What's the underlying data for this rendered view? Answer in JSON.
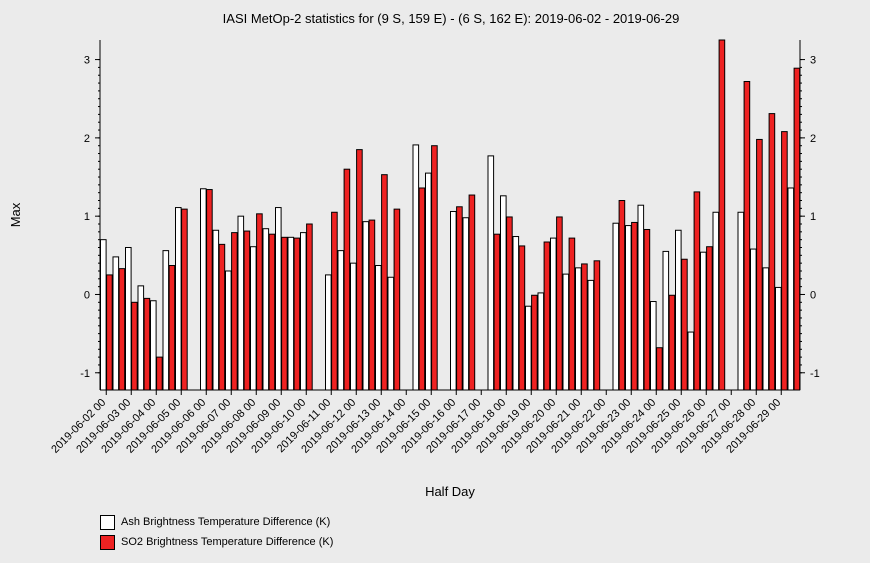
{
  "chart_data": {
    "type": "bar",
    "title": "IASI MetOp-2 statistics for (9 S, 159 E) - (6 S, 162 E): 2019-06-02 - 2019-06-29",
    "xlabel": "Half Day",
    "ylabel": "Max",
    "ylim": [
      -1.22,
      3.25
    ],
    "yticks": [
      -1,
      0,
      1,
      2,
      3
    ],
    "grid": false,
    "legend_position": "bottom-left",
    "categories": [
      "2019-06-02 00",
      "2019-06-02 12",
      "2019-06-03 00",
      "2019-06-03 12",
      "2019-06-04 00",
      "2019-06-04 12",
      "2019-06-05 00",
      "2019-06-05 12",
      "2019-06-06 00",
      "2019-06-06 12",
      "2019-06-07 00",
      "2019-06-07 12",
      "2019-06-08 00",
      "2019-06-08 12",
      "2019-06-09 00",
      "2019-06-09 12",
      "2019-06-10 00",
      "2019-06-10 12",
      "2019-06-11 00",
      "2019-06-11 12",
      "2019-06-12 00",
      "2019-06-12 12",
      "2019-06-13 00",
      "2019-06-13 12",
      "2019-06-14 00",
      "2019-06-14 12",
      "2019-06-15 00",
      "2019-06-15 12",
      "2019-06-16 00",
      "2019-06-16 12",
      "2019-06-17 00",
      "2019-06-17 12",
      "2019-06-18 00",
      "2019-06-18 12",
      "2019-06-19 00",
      "2019-06-19 12",
      "2019-06-20 00",
      "2019-06-20 12",
      "2019-06-21 00",
      "2019-06-21 12",
      "2019-06-22 00",
      "2019-06-22 12",
      "2019-06-23 00",
      "2019-06-23 12",
      "2019-06-24 00",
      "2019-06-24 12",
      "2019-06-25 00",
      "2019-06-25 12",
      "2019-06-26 00",
      "2019-06-26 12",
      "2019-06-27 00",
      "2019-06-27 12",
      "2019-06-28 00",
      "2019-06-28 12",
      "2019-06-29 00",
      "2019-06-29 12"
    ],
    "tick_labels": [
      "2019-06-02 00",
      "2019-06-03 00",
      "2019-06-04 00",
      "2019-06-05 00",
      "2019-06-06 00",
      "2019-06-07 00",
      "2019-06-08 00",
      "2019-06-09 00",
      "2019-06-10 00",
      "2019-06-11 00",
      "2019-06-12 00",
      "2019-06-13 00",
      "2019-06-14 00",
      "2019-06-15 00",
      "2019-06-16 00",
      "2019-06-17 00",
      "2019-06-18 00",
      "2019-06-19 00",
      "2019-06-20 00",
      "2019-06-21 00",
      "2019-06-22 00",
      "2019-06-23 00",
      "2019-06-24 00",
      "2019-06-25 00",
      "2019-06-26 00",
      "2019-06-27 00",
      "2019-06-28 00",
      "2019-06-29 00"
    ],
    "series": [
      {
        "name": "Ash Brightness Temperature Difference (K)",
        "color": "#ffffff",
        "values": [
          0.7,
          0.48,
          0.6,
          0.11,
          -0.08,
          0.56,
          1.11,
          null,
          1.35,
          0.82,
          0.3,
          1.0,
          0.61,
          0.84,
          1.11,
          0.73,
          0.79,
          null,
          0.25,
          0.56,
          0.4,
          0.93,
          0.37,
          0.22,
          null,
          1.91,
          1.55,
          null,
          1.06,
          0.98,
          null,
          1.77,
          1.26,
          0.74,
          -0.15,
          0.02,
          0.72,
          0.26,
          0.34,
          0.18,
          null,
          0.91,
          0.88,
          1.14,
          -0.09,
          0.55,
          0.82,
          -0.48,
          0.54,
          1.05,
          null,
          1.05,
          0.58,
          0.34,
          0.09,
          1.36
        ]
      },
      {
        "name": "SO2 Brightness Temperature Difference (K)",
        "color": "#ee2222",
        "values": [
          0.25,
          0.33,
          -0.1,
          -0.05,
          -0.8,
          0.37,
          1.09,
          null,
          1.34,
          0.64,
          0.79,
          0.81,
          1.03,
          0.77,
          0.73,
          0.72,
          0.9,
          null,
          1.05,
          1.6,
          1.85,
          0.95,
          1.53,
          1.09,
          null,
          1.36,
          1.9,
          null,
          1.12,
          1.27,
          null,
          0.77,
          0.99,
          0.62,
          -0.01,
          0.67,
          0.99,
          0.72,
          0.39,
          0.43,
          null,
          1.2,
          0.92,
          0.83,
          -0.68,
          -0.01,
          0.45,
          1.31,
          0.61,
          3.25,
          null,
          2.72,
          1.98,
          2.31,
          2.08,
          2.89
        ]
      }
    ]
  }
}
